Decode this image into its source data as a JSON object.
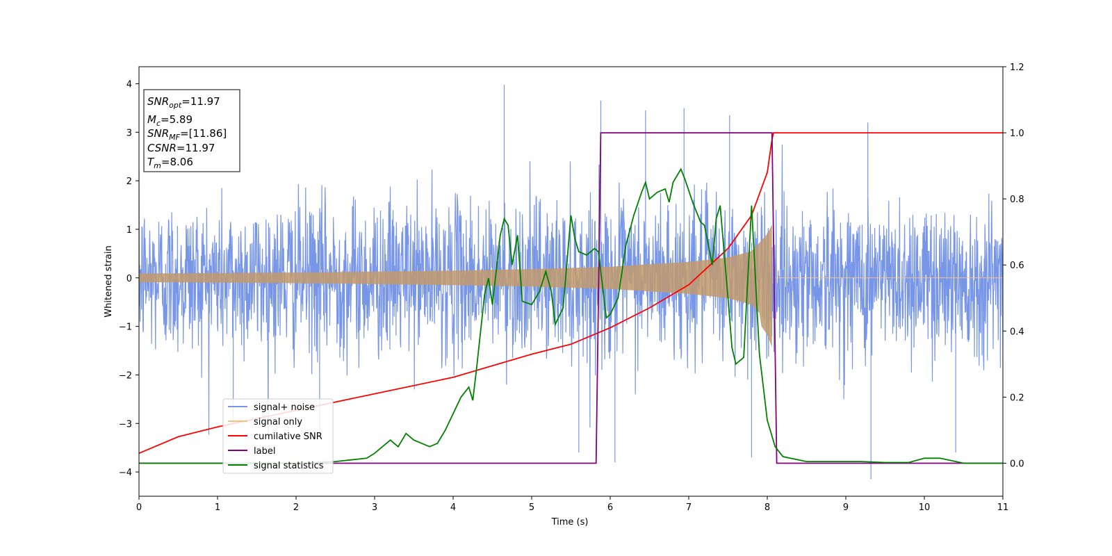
{
  "chart_data": {
    "type": "line",
    "xlabel": "Time (s)",
    "ylabel": "Whitened strain",
    "xlim": [
      0,
      11
    ],
    "ylim": [
      -4.5,
      4.35
    ],
    "ylim_right": [
      -0.1,
      1.2
    ],
    "x_ticks": [
      "0",
      "1",
      "2",
      "3",
      "4",
      "5",
      "6",
      "7",
      "8",
      "9",
      "10",
      "11"
    ],
    "y_ticks": [
      "4",
      "3",
      "2",
      "1",
      "0",
      "−1",
      "−2",
      "−3",
      "−4"
    ],
    "y_ticks_right": [
      "1.2",
      "1.0",
      "0.8",
      "0.6",
      "0.4",
      "0.2",
      "0.0"
    ],
    "grid": false,
    "legend_position": "lower-left",
    "info_box": {
      "snr_opt": {
        "main": "SNR",
        "sub": "opt",
        "value": "=11.97"
      },
      "mc": {
        "main": "M",
        "sub": "c",
        "value": "=5.89"
      },
      "snr_mf": {
        "main": "SNR",
        "sub": "MF",
        "value": "=[11.86]"
      },
      "csnr": {
        "main": "CSNR",
        "value": "=11.97"
      },
      "tm": {
        "main": "T",
        "sub": "m",
        "value": "=8.06"
      }
    },
    "series": [
      {
        "name": "signal+ noise",
        "color": "#7896e8",
        "axis": "left",
        "noise_std": 0.8,
        "spikes": [
          [
            4.65,
            3.98
          ],
          [
            5.88,
            3.65
          ],
          [
            6.45,
            3.45
          ],
          [
            6.94,
            3.5
          ],
          [
            7.52,
            3.35
          ],
          [
            9.32,
            -4.15
          ],
          [
            5.6,
            -3.6
          ],
          [
            6.06,
            -3.8
          ],
          [
            7.8,
            -3.7
          ],
          [
            9.28,
            3.2
          ],
          [
            10.4,
            -3.6
          ],
          [
            1.2,
            -3.0
          ],
          [
            2.3,
            -3.2
          ]
        ]
      },
      {
        "name": "signal only",
        "color": "#f5c27a",
        "axis": "left",
        "envelope": [
          [
            0,
            0.09
          ],
          [
            2,
            0.11
          ],
          [
            4,
            0.15
          ],
          [
            5,
            0.18
          ],
          [
            6,
            0.23
          ],
          [
            7,
            0.33
          ],
          [
            7.5,
            0.42
          ],
          [
            7.8,
            0.55
          ],
          [
            8.0,
            0.9
          ],
          [
            8.06,
            1.1
          ]
        ],
        "merger_time": 8.06
      },
      {
        "name": "cumilative SNR",
        "color": "#ff0000",
        "axis": "right",
        "points": [
          [
            0,
            0.03
          ],
          [
            0.5,
            0.08
          ],
          [
            1,
            0.11
          ],
          [
            2,
            0.16
          ],
          [
            3,
            0.21
          ],
          [
            4,
            0.26
          ],
          [
            5,
            0.33
          ],
          [
            5.5,
            0.36
          ],
          [
            6,
            0.41
          ],
          [
            6.5,
            0.47
          ],
          [
            7,
            0.54
          ],
          [
            7.5,
            0.65
          ],
          [
            7.8,
            0.75
          ],
          [
            8.0,
            0.88
          ],
          [
            8.06,
            0.98
          ],
          [
            8.08,
            1.0
          ],
          [
            11,
            1.0
          ]
        ]
      },
      {
        "name": "label",
        "color": "#800080",
        "axis": "right",
        "points": [
          [
            0,
            0.0
          ],
          [
            5.82,
            0.0
          ],
          [
            5.88,
            1.0
          ],
          [
            8.06,
            1.0
          ],
          [
            8.12,
            0.0
          ],
          [
            11,
            0.0
          ]
        ]
      },
      {
        "name": "signal statistics",
        "color": "#008000",
        "axis": "right",
        "points": [
          [
            0,
            0.0
          ],
          [
            1,
            0.0
          ],
          [
            2,
            0.0
          ],
          [
            2.5,
            0.005
          ],
          [
            2.7,
            0.01
          ],
          [
            2.9,
            0.015
          ],
          [
            3.0,
            0.03
          ],
          [
            3.1,
            0.05
          ],
          [
            3.2,
            0.07
          ],
          [
            3.3,
            0.05
          ],
          [
            3.4,
            0.09
          ],
          [
            3.5,
            0.07
          ],
          [
            3.6,
            0.06
          ],
          [
            3.7,
            0.05
          ],
          [
            3.8,
            0.06
          ],
          [
            3.9,
            0.1
          ],
          [
            4.0,
            0.15
          ],
          [
            4.1,
            0.2
          ],
          [
            4.2,
            0.23
          ],
          [
            4.25,
            0.19
          ],
          [
            4.3,
            0.29
          ],
          [
            4.4,
            0.51
          ],
          [
            4.45,
            0.56
          ],
          [
            4.5,
            0.48
          ],
          [
            4.6,
            0.69
          ],
          [
            4.65,
            0.74
          ],
          [
            4.7,
            0.72
          ],
          [
            4.75,
            0.6
          ],
          [
            4.82,
            0.69
          ],
          [
            4.88,
            0.49
          ],
          [
            5.0,
            0.48
          ],
          [
            5.1,
            0.52
          ],
          [
            5.18,
            0.58
          ],
          [
            5.25,
            0.52
          ],
          [
            5.3,
            0.42
          ],
          [
            5.4,
            0.47
          ],
          [
            5.5,
            0.75
          ],
          [
            5.55,
            0.68
          ],
          [
            5.6,
            0.64
          ],
          [
            5.7,
            0.63
          ],
          [
            5.8,
            0.65
          ],
          [
            5.85,
            0.64
          ],
          [
            5.95,
            0.44
          ],
          [
            6.0,
            0.45
          ],
          [
            6.1,
            0.5
          ],
          [
            6.2,
            0.66
          ],
          [
            6.3,
            0.75
          ],
          [
            6.4,
            0.82
          ],
          [
            6.45,
            0.85
          ],
          [
            6.5,
            0.8
          ],
          [
            6.6,
            0.82
          ],
          [
            6.7,
            0.83
          ],
          [
            6.75,
            0.79
          ],
          [
            6.8,
            0.85
          ],
          [
            6.9,
            0.89
          ],
          [
            6.95,
            0.86
          ],
          [
            7.05,
            0.79
          ],
          [
            7.15,
            0.73
          ],
          [
            7.2,
            0.72
          ],
          [
            7.3,
            0.6
          ],
          [
            7.35,
            0.74
          ],
          [
            7.4,
            0.78
          ],
          [
            7.5,
            0.5
          ],
          [
            7.55,
            0.35
          ],
          [
            7.6,
            0.3
          ],
          [
            7.7,
            0.32
          ],
          [
            7.8,
            0.78
          ],
          [
            7.9,
            0.33
          ],
          [
            8.0,
            0.13
          ],
          [
            8.1,
            0.05
          ],
          [
            8.2,
            0.02
          ],
          [
            8.5,
            0.005
          ],
          [
            9.0,
            0.005
          ],
          [
            9.2,
            0.005
          ],
          [
            9.5,
            0.002
          ],
          [
            9.8,
            0.002
          ],
          [
            10.0,
            0.015
          ],
          [
            10.2,
            0.015
          ],
          [
            10.5,
            0.0
          ],
          [
            11,
            0.0
          ]
        ]
      }
    ]
  }
}
